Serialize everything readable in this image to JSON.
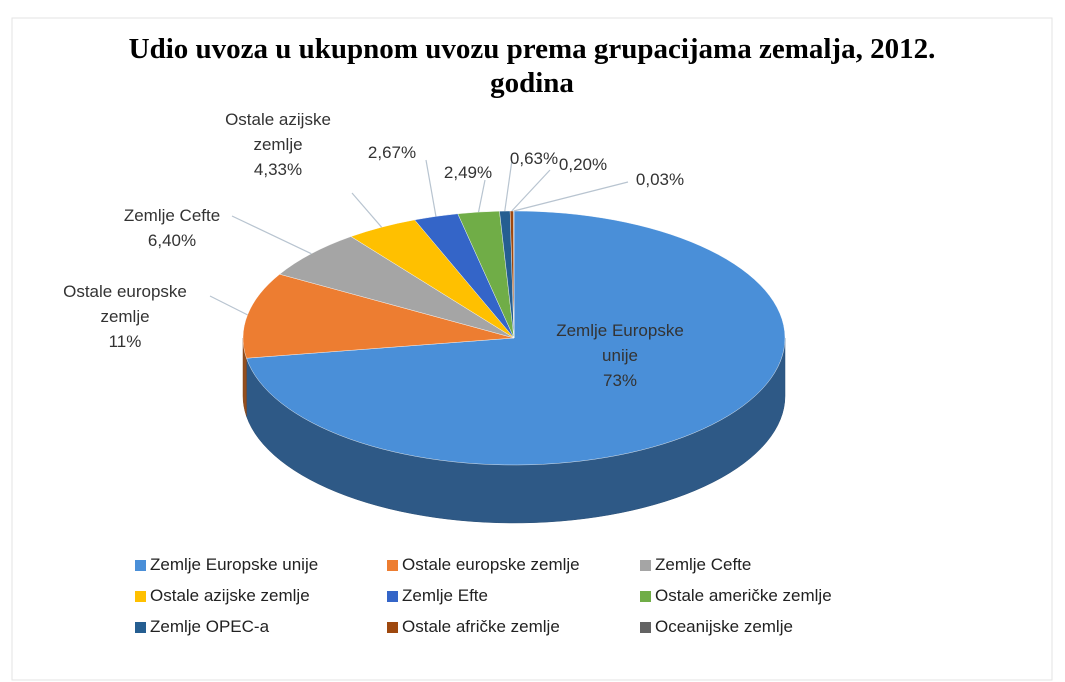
{
  "chart_data": {
    "type": "pie3d",
    "title": "Udio uvoza u ukupnom uvozu prema grupacijama zemalja, 2012. godina",
    "categories": [
      "Zemlje Europske unije",
      "Ostale europske zemlje",
      "Zemlje Cefte",
      "Ostale azijske zemlje",
      "Zemlje Efte",
      "Ostale američke zemlje",
      "Zemlje OPEC-a",
      "Ostale afričke zemlje",
      "Oceanijske zemlje"
    ],
    "values": [
      73,
      11,
      6.4,
      4.33,
      2.67,
      2.49,
      0.63,
      0.2,
      0.03
    ],
    "value_labels": [
      "73%",
      "11%",
      "6,40%",
      "4,33%",
      "2,67%",
      "2,49%",
      "0,63%",
      "0,20%",
      "0,03%"
    ],
    "colors": [
      "#4a8fd8",
      "#ed7d31",
      "#a5a5a5",
      "#ffc000",
      "#3465c8",
      "#70ad47",
      "#255e91",
      "#9e480e",
      "#636363"
    ],
    "legend": "bottom"
  }
}
